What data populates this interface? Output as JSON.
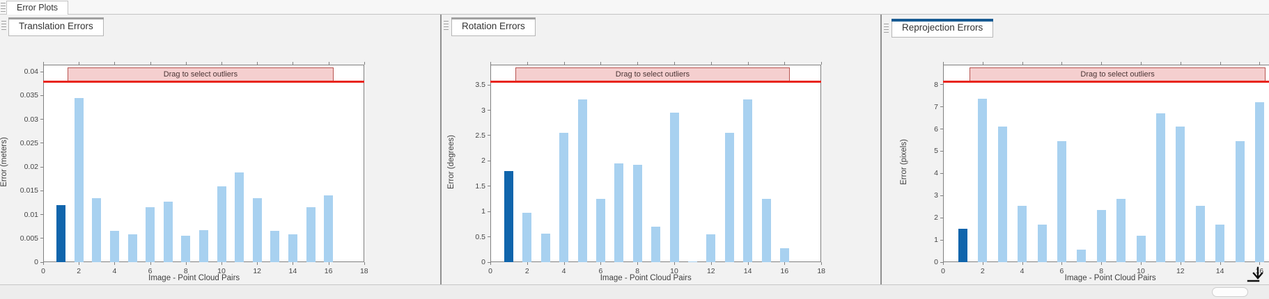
{
  "app": {
    "tab": "Error Plots"
  },
  "panels": [
    {
      "tab": "Translation Errors",
      "active": false
    },
    {
      "tab": "Rotation Errors",
      "active": false
    },
    {
      "tab": "Reprojection Errors",
      "active": true
    }
  ],
  "band_label": "Drag to select outliers",
  "xlabel": "Image - Point Cloud Pairs",
  "colors": {
    "bar_light": "#a8d1f0",
    "bar_dark": "#1065ac",
    "red_line": "#e8251d",
    "band_fill": "#f5cfcf",
    "band_border": "#b85450",
    "tab_accent_active": "#175a92",
    "tab_accent_inactive": "#a0a0a0"
  },
  "chart_data": [
    {
      "type": "bar",
      "title": "Translation Errors",
      "ylabel": "Error (meters)",
      "xlabel": "Image - Point Cloud Pairs",
      "categories": [
        1,
        2,
        3,
        4,
        5,
        6,
        7,
        8,
        9,
        10,
        11,
        12,
        13,
        14,
        15,
        16
      ],
      "values": [
        0.012,
        0.0345,
        0.0135,
        0.0066,
        0.0058,
        0.0116,
        0.0127,
        0.0056,
        0.0067,
        0.016,
        0.0188,
        0.0135,
        0.0066,
        0.0058,
        0.0116,
        0.014
      ],
      "highlight_index": 0,
      "ylim": [
        0,
        0.0415
      ],
      "yticks": [
        0,
        0.005,
        0.01,
        0.015,
        0.02,
        0.025,
        0.03,
        0.035,
        0.04
      ],
      "xlim": [
        0,
        18
      ],
      "xticks": [
        0,
        2,
        4,
        6,
        8,
        10,
        12,
        14,
        16,
        18
      ],
      "outlier_threshold_line": 0.038,
      "band_range": [
        1.35,
        16.3
      ],
      "grid": false,
      "legend": null
    },
    {
      "type": "bar",
      "title": "Rotation Errors",
      "ylabel": "Error (degrees)",
      "xlabel": "Image - Point Cloud Pairs",
      "categories": [
        1,
        2,
        3,
        4,
        5,
        6,
        7,
        8,
        9,
        10,
        11,
        12,
        13,
        14,
        15,
        16
      ],
      "values": [
        1.8,
        0.98,
        0.56,
        2.55,
        3.22,
        1.25,
        1.95,
        1.92,
        0.7,
        2.95,
        0.02,
        0.55,
        2.55,
        3.22,
        1.25,
        0.27
      ],
      "highlight_index": 0,
      "ylim": [
        0,
        3.9
      ],
      "yticks": [
        0,
        0.5,
        1,
        1.5,
        2,
        2.5,
        3,
        3.5
      ],
      "xlim": [
        0,
        18
      ],
      "xticks": [
        0,
        2,
        4,
        6,
        8,
        10,
        12,
        14,
        16,
        18
      ],
      "outlier_threshold_line": 3.57,
      "band_range": [
        1.35,
        16.3
      ],
      "grid": false,
      "legend": null
    },
    {
      "type": "bar",
      "title": "Reprojection Errors",
      "ylabel": "Error (pixels)",
      "xlabel": "Image - Point Cloud Pairs",
      "categories": [
        1,
        2,
        3,
        4,
        5,
        6,
        7,
        8,
        9,
        10,
        11,
        12,
        13,
        14,
        15,
        16
      ],
      "values": [
        1.5,
        7.35,
        6.1,
        2.55,
        1.7,
        5.45,
        0.55,
        2.35,
        2.85,
        1.2,
        6.7,
        6.1,
        2.55,
        1.7,
        5.45,
        7.2
      ],
      "highlight_index": 0,
      "ylim": [
        0,
        8.9
      ],
      "yticks": [
        0,
        1,
        2,
        3,
        4,
        5,
        6,
        7,
        8
      ],
      "xlim": [
        0,
        18
      ],
      "xticks": [
        0,
        2,
        4,
        6,
        8,
        10,
        12,
        14,
        16
      ],
      "outlier_threshold_line": 8.15,
      "band_range": [
        1.35,
        16.3
      ],
      "grid": false,
      "legend": null
    }
  ]
}
